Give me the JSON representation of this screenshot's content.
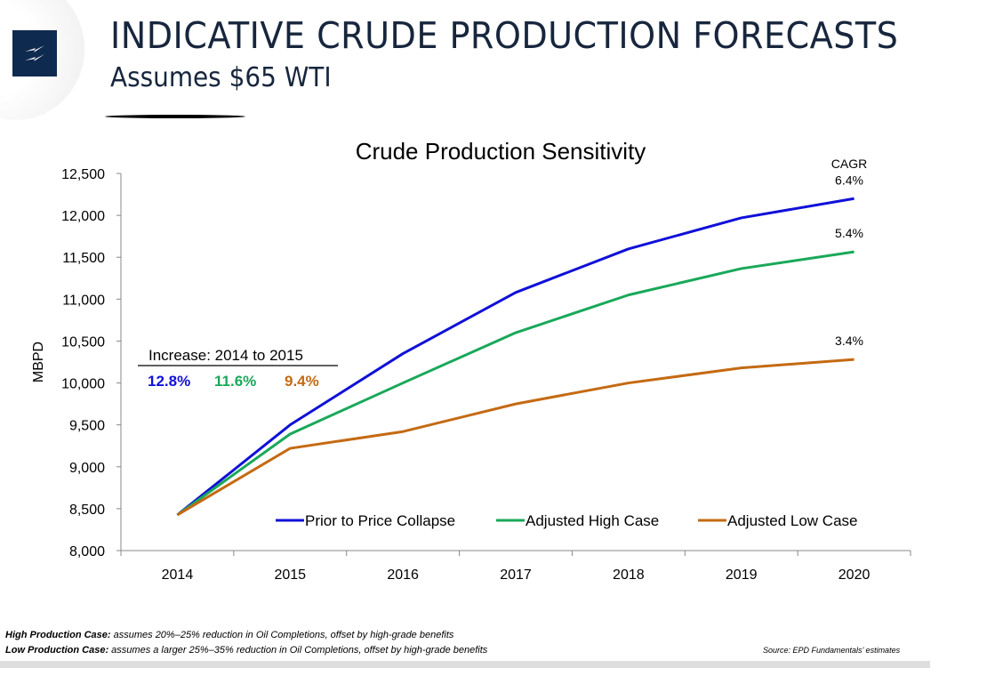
{
  "header": {
    "title": "INDICATIVE CRUDE PRODUCTION FORECASTS",
    "subtitle": "Assumes $65 WTI"
  },
  "footer": {
    "note1_label": "High Production Case:",
    "note1_text": " assumes 20%–25% reduction in Oil Completions, offset by high-grade benefits",
    "note2_label": "Low Production Case:",
    "note2_text": " assumes a larger 25%–35% reduction in Oil Completions, offset by high-grade benefits",
    "source": "Source:  EPD Fundamentals’ estimates"
  },
  "chart_data": {
    "type": "line",
    "title": "Crude Production Sensitivity",
    "ylabel": "MBPD",
    "xlabel": "",
    "ylim": [
      8000,
      12500
    ],
    "yticks": [
      "8,000",
      "8,500",
      "9,000",
      "9,500",
      "10,000",
      "10,500",
      "11,000",
      "11,500",
      "12,000",
      "12,500"
    ],
    "categories": [
      "2014",
      "2015",
      "2016",
      "2017",
      "2018",
      "2019",
      "2020"
    ],
    "grid": false,
    "legend": "bottom-inside",
    "series": [
      {
        "name": "Prior to Price Collapse",
        "color": "#1010d8",
        "values": [
          8425,
          9500,
          10350,
          11080,
          11600,
          11970,
          12200
        ],
        "cagr": "6.4%",
        "increase": "12.8%"
      },
      {
        "name": "Adjusted High Case",
        "color": "#19a85a",
        "values": [
          8425,
          9390,
          10000,
          10600,
          11050,
          11365,
          11565
        ],
        "cagr": "5.4%",
        "increase": "11.6%"
      },
      {
        "name": "Adjusted Low Case",
        "color": "#c46a12",
        "values": [
          8425,
          9220,
          9420,
          9750,
          10000,
          10180,
          10280
        ],
        "cagr": "3.4%",
        "increase": "9.4%"
      }
    ],
    "annotations": {
      "cagr_label": "CAGR",
      "increase_label": "Increase:  2014 to 2015"
    }
  }
}
